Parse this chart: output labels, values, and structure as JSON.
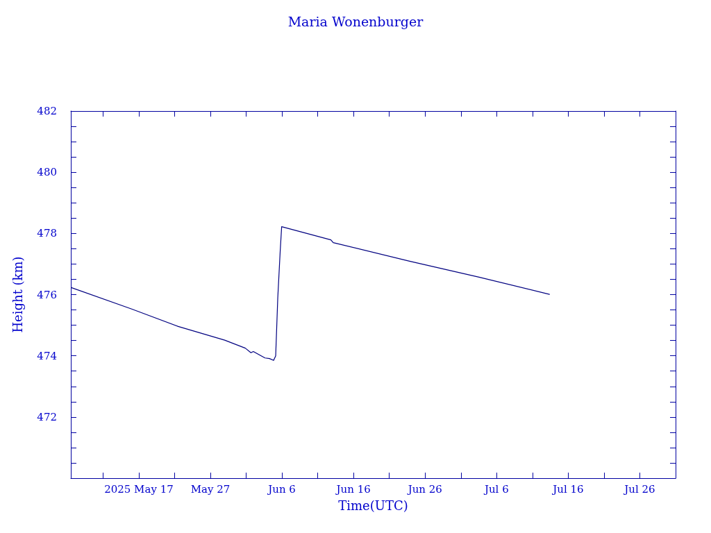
{
  "chart_data": {
    "type": "line",
    "title": "Maria Wonenburger",
    "xlabel": "Time(UTC)",
    "ylabel": "Height (km)",
    "series": [
      {
        "color": "#000080",
        "x": [
          "2025-05-07T13:30",
          "2025-05-16",
          "2025-05-22T12:00",
          "2025-05-29",
          "2025-05-31T21:00",
          "2025-06-01T16:00",
          "2025-06-02",
          "2025-06-03T15:00",
          "2025-06-04T06:00",
          "2025-06-04T20:00",
          "2025-06-05T03:00",
          "2025-06-05T10:00",
          "2025-06-05T18:00",
          "2025-06-05T23:00",
          "2025-06-12T20:00",
          "2025-06-13T04:00",
          "2025-06-23T20:00",
          "2025-07-03T13:00",
          "2025-07-13T09:00"
        ],
        "values": [
          476.23,
          475.53,
          474.96,
          474.51,
          474.25,
          474.1,
          474.14,
          473.93,
          473.91,
          473.85,
          474.0,
          475.9,
          477.4,
          478.22,
          477.79,
          477.7,
          477.09,
          476.57,
          476.01
        ]
      }
    ],
    "xlim": [
      "2025-05-07T12:00",
      "2025-07-31"
    ],
    "xticks": [
      {
        "value": "2025-05-12",
        "label": null
      },
      {
        "value": "2025-05-17",
        "label": "2025 May 17"
      },
      {
        "value": "2025-05-22",
        "label": null
      },
      {
        "value": "2025-05-27",
        "label": "May 27"
      },
      {
        "value": "2025-06-01",
        "label": null
      },
      {
        "value": "2025-06-06",
        "label": "Jun 6"
      },
      {
        "value": "2025-06-11",
        "label": null
      },
      {
        "value": "2025-06-16",
        "label": "Jun 16"
      },
      {
        "value": "2025-06-21",
        "label": null
      },
      {
        "value": "2025-06-26",
        "label": "Jun 26"
      },
      {
        "value": "2025-07-01",
        "label": null
      },
      {
        "value": "2025-07-06",
        "label": "Jul 6"
      },
      {
        "value": "2025-07-11",
        "label": null
      },
      {
        "value": "2025-07-16",
        "label": "Jul 16"
      },
      {
        "value": "2025-07-21",
        "label": null
      },
      {
        "value": "2025-07-26",
        "label": "Jul 26"
      }
    ],
    "ylim": [
      470,
      482
    ],
    "yticks": [
      {
        "value": 470,
        "label": null
      },
      {
        "value": 470.5,
        "label": null
      },
      {
        "value": 471,
        "label": null
      },
      {
        "value": 471.5,
        "label": null
      },
      472,
      {
        "value": 472.5,
        "label": null
      },
      {
        "value": 473,
        "label": null
      },
      {
        "value": 473.5,
        "label": null
      },
      474,
      {
        "value": 474.5,
        "label": null
      },
      {
        "value": 475,
        "label": null
      },
      {
        "value": 475.5,
        "label": null
      },
      476,
      {
        "value": 476.5,
        "label": null
      },
      {
        "value": 477,
        "label": null
      },
      {
        "value": 477.5,
        "label": null
      },
      478,
      {
        "value": 478.5,
        "label": null
      },
      {
        "value": 479,
        "label": null
      },
      {
        "value": 479.5,
        "label": null
      },
      480,
      {
        "value": 480.5,
        "label": null
      },
      {
        "value": 481,
        "label": null
      },
      {
        "value": 481.5,
        "label": null
      },
      482
    ],
    "grid": false,
    "marker": "none",
    "line_style": "solid"
  }
}
